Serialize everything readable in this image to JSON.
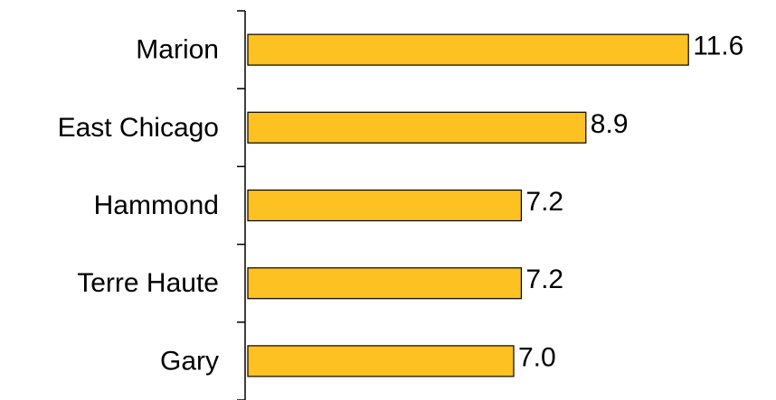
{
  "chart_data": {
    "type": "bar",
    "orientation": "horizontal",
    "categories": [
      "Marion",
      "East Chicago",
      "Hammond",
      "Terre Haute",
      "Gary"
    ],
    "values": [
      11.6,
      8.9,
      7.2,
      7.2,
      7.0
    ],
    "value_labels": [
      "11.6",
      "8.9",
      "7.2",
      "7.2",
      "7.0"
    ],
    "title": "",
    "xlabel": "",
    "ylabel": "",
    "grid": false,
    "legend": "none",
    "bar_color": "#FDC121",
    "bar_outline_color": "#000000"
  }
}
